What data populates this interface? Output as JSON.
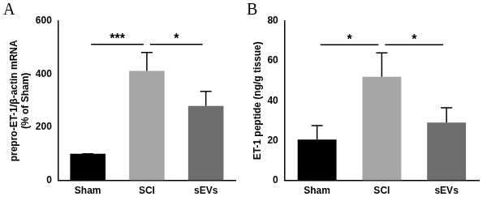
{
  "chart_data": [
    {
      "type": "bar",
      "title": "A",
      "y_label": [
        "prepro-ET-1/β-actin mRNA",
        "(% of Sham)"
      ],
      "categories": [
        "Sham",
        "SCI",
        "sEVs"
      ],
      "values": [
        100,
        412,
        280
      ],
      "errors": [
        0,
        70,
        55
      ],
      "colors": [
        "#000000",
        "#a6a6a6",
        "#6e6e6e"
      ],
      "ylim": [
        0,
        600
      ],
      "yticks": [
        0,
        200,
        400,
        600
      ],
      "grid": false,
      "annotations": [
        {
          "from": "Sham",
          "to": "SCI",
          "text": "***"
        },
        {
          "from": "SCI",
          "to": "sEVs",
          "text": "*"
        }
      ]
    },
    {
      "type": "bar",
      "title": "B",
      "y_label": "ET-1 peptide (ng/g tissue)",
      "categories": [
        "Sham",
        "SCI",
        "sEVs"
      ],
      "values": [
        20.5,
        52,
        29
      ],
      "errors": [
        7,
        12,
        7.5
      ],
      "colors": [
        "#000000",
        "#a6a6a6",
        "#6e6e6e"
      ],
      "ylim": [
        0,
        80
      ],
      "yticks": [
        0,
        20,
        40,
        60,
        80
      ],
      "grid": false,
      "annotations": [
        {
          "from": "Sham",
          "to": "SCI",
          "text": "*"
        },
        {
          "from": "SCI",
          "to": "sEVs",
          "text": "*"
        }
      ]
    }
  ]
}
